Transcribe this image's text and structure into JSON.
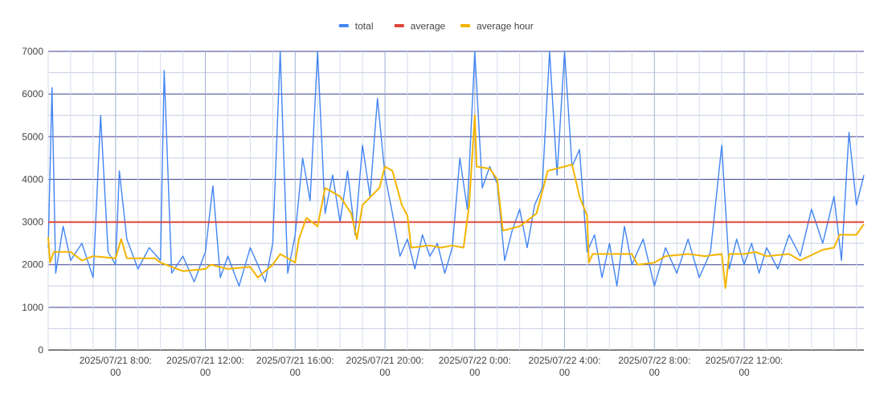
{
  "chart_data": {
    "type": "line",
    "title": "",
    "xlabel": "",
    "ylabel": "",
    "legend_position": "top-center",
    "grid": true,
    "ylim": [
      0,
      7000
    ],
    "y_ticks": [
      "0",
      "1000",
      "2000",
      "3000",
      "4000",
      "5000",
      "6000",
      "7000"
    ],
    "x_range": [
      "2025/07/21 05:00",
      "2025/07/22 17:20"
    ],
    "x_ticks": [
      {
        "t": "2025/07/21 08:00",
        "line1": "2025/07/21 8:00:",
        "line2": "00"
      },
      {
        "t": "2025/07/21 12:00",
        "line1": "2025/07/21 12:00:",
        "line2": "00"
      },
      {
        "t": "2025/07/21 16:00",
        "line1": "2025/07/21 16:00:",
        "line2": "00"
      },
      {
        "t": "2025/07/21 20:00",
        "line1": "2025/07/21 20:00:",
        "line2": "00"
      },
      {
        "t": "2025/07/22 00:00",
        "line1": "2025/07/22 0:00:",
        "line2": "00"
      },
      {
        "t": "2025/07/22 04:00",
        "line1": "2025/07/22 4:00:",
        "line2": "00"
      },
      {
        "t": "2025/07/22 08:00",
        "line1": "2025/07/22 8:00:",
        "line2": "00"
      },
      {
        "t": "2025/07/22 12:00",
        "line1": "2025/07/22 12:00:",
        "line2": "00"
      }
    ],
    "series": [
      {
        "name": "total",
        "color": "#4285f4",
        "points": [
          [
            "2025/07/21 05:00",
            2400
          ],
          [
            "2025/07/21 05:10",
            6150
          ],
          [
            "2025/07/21 05:20",
            1800
          ],
          [
            "2025/07/21 05:40",
            2900
          ],
          [
            "2025/07/21 06:00",
            2100
          ],
          [
            "2025/07/21 06:30",
            2500
          ],
          [
            "2025/07/21 07:00",
            1700
          ],
          [
            "2025/07/21 07:20",
            5500
          ],
          [
            "2025/07/21 07:40",
            2300
          ],
          [
            "2025/07/21 08:00",
            2000
          ],
          [
            "2025/07/21 08:10",
            4200
          ],
          [
            "2025/07/21 08:30",
            2600
          ],
          [
            "2025/07/21 09:00",
            1900
          ],
          [
            "2025/07/21 09:30",
            2400
          ],
          [
            "2025/07/21 10:00",
            2100
          ],
          [
            "2025/07/21 10:10",
            6550
          ],
          [
            "2025/07/21 10:30",
            1800
          ],
          [
            "2025/07/21 11:00",
            2200
          ],
          [
            "2025/07/21 11:30",
            1600
          ],
          [
            "2025/07/21 12:00",
            2300
          ],
          [
            "2025/07/21 12:20",
            3850
          ],
          [
            "2025/07/21 12:40",
            1700
          ],
          [
            "2025/07/21 13:00",
            2200
          ],
          [
            "2025/07/21 13:30",
            1500
          ],
          [
            "2025/07/21 14:00",
            2400
          ],
          [
            "2025/07/21 14:20",
            2000
          ],
          [
            "2025/07/21 14:40",
            1600
          ],
          [
            "2025/07/21 15:00",
            2500
          ],
          [
            "2025/07/21 15:20",
            7000
          ],
          [
            "2025/07/21 15:40",
            1800
          ],
          [
            "2025/07/21 16:00",
            2700
          ],
          [
            "2025/07/21 16:20",
            4500
          ],
          [
            "2025/07/21 16:40",
            3500
          ],
          [
            "2025/07/21 17:00",
            7000
          ],
          [
            "2025/07/21 17:20",
            3200
          ],
          [
            "2025/07/21 17:40",
            4100
          ],
          [
            "2025/07/21 18:00",
            3000
          ],
          [
            "2025/07/21 18:20",
            4200
          ],
          [
            "2025/07/21 18:40",
            2700
          ],
          [
            "2025/07/21 19:00",
            4800
          ],
          [
            "2025/07/21 19:20",
            3600
          ],
          [
            "2025/07/21 19:40",
            5900
          ],
          [
            "2025/07/21 20:00",
            4100
          ],
          [
            "2025/07/21 20:20",
            3200
          ],
          [
            "2025/07/21 20:40",
            2200
          ],
          [
            "2025/07/21 21:00",
            2600
          ],
          [
            "2025/07/21 21:20",
            1900
          ],
          [
            "2025/07/21 21:40",
            2700
          ],
          [
            "2025/07/21 22:00",
            2200
          ],
          [
            "2025/07/21 22:20",
            2500
          ],
          [
            "2025/07/21 22:40",
            1800
          ],
          [
            "2025/07/21 23:00",
            2400
          ],
          [
            "2025/07/21 23:20",
            4500
          ],
          [
            "2025/07/21 23:40",
            3300
          ],
          [
            "2025/07/22 00:00",
            7000
          ],
          [
            "2025/07/22 00:20",
            3800
          ],
          [
            "2025/07/22 00:40",
            4300
          ],
          [
            "2025/07/22 01:00",
            3900
          ],
          [
            "2025/07/22 01:20",
            2100
          ],
          [
            "2025/07/22 01:40",
            2800
          ],
          [
            "2025/07/22 02:00",
            3300
          ],
          [
            "2025/07/22 02:20",
            2400
          ],
          [
            "2025/07/22 02:40",
            3400
          ],
          [
            "2025/07/22 03:00",
            3800
          ],
          [
            "2025/07/22 03:20",
            7000
          ],
          [
            "2025/07/22 03:40",
            4100
          ],
          [
            "2025/07/22 04:00",
            7000
          ],
          [
            "2025/07/22 04:20",
            4300
          ],
          [
            "2025/07/22 04:40",
            4700
          ],
          [
            "2025/07/22 05:00",
            2300
          ],
          [
            "2025/07/22 05:20",
            2700
          ],
          [
            "2025/07/22 05:40",
            1700
          ],
          [
            "2025/07/22 06:00",
            2500
          ],
          [
            "2025/07/22 06:20",
            1500
          ],
          [
            "2025/07/22 06:40",
            2900
          ],
          [
            "2025/07/22 07:00",
            2000
          ],
          [
            "2025/07/22 07:30",
            2600
          ],
          [
            "2025/07/22 08:00",
            1500
          ],
          [
            "2025/07/22 08:30",
            2400
          ],
          [
            "2025/07/22 09:00",
            1800
          ],
          [
            "2025/07/22 09:30",
            2600
          ],
          [
            "2025/07/22 10:00",
            1700
          ],
          [
            "2025/07/22 10:30",
            2300
          ],
          [
            "2025/07/22 11:00",
            4800
          ],
          [
            "2025/07/22 11:20",
            1900
          ],
          [
            "2025/07/22 11:40",
            2600
          ],
          [
            "2025/07/22 12:00",
            2000
          ],
          [
            "2025/07/22 12:20",
            2500
          ],
          [
            "2025/07/22 12:40",
            1800
          ],
          [
            "2025/07/22 13:00",
            2400
          ],
          [
            "2025/07/22 13:30",
            1900
          ],
          [
            "2025/07/22 14:00",
            2700
          ],
          [
            "2025/07/22 14:30",
            2200
          ],
          [
            "2025/07/22 15:00",
            3300
          ],
          [
            "2025/07/22 15:30",
            2500
          ],
          [
            "2025/07/22 16:00",
            3600
          ],
          [
            "2025/07/22 16:20",
            2100
          ],
          [
            "2025/07/22 16:40",
            5100
          ],
          [
            "2025/07/22 17:00",
            3400
          ],
          [
            "2025/07/22 17:20",
            4100
          ]
        ]
      },
      {
        "name": "average",
        "color": "#db4437",
        "points": [
          [
            "2025/07/21 05:00",
            3000
          ],
          [
            "2025/07/22 17:20",
            3000
          ]
        ]
      },
      {
        "name": "average hour",
        "color": "#f4b400",
        "points": [
          [
            "2025/07/21 05:00",
            2650
          ],
          [
            "2025/07/21 05:05",
            2050
          ],
          [
            "2025/07/21 05:15",
            2300
          ],
          [
            "2025/07/21 06:00",
            2300
          ],
          [
            "2025/07/21 06:30",
            2100
          ],
          [
            "2025/07/21 07:00",
            2200
          ],
          [
            "2025/07/21 08:00",
            2150
          ],
          [
            "2025/07/21 08:15",
            2600
          ],
          [
            "2025/07/21 08:30",
            2150
          ],
          [
            "2025/07/21 09:45",
            2150
          ],
          [
            "2025/07/21 10:00",
            2050
          ],
          [
            "2025/07/21 10:30",
            1950
          ],
          [
            "2025/07/21 11:00",
            1850
          ],
          [
            "2025/07/21 12:00",
            1900
          ],
          [
            "2025/07/21 12:15",
            2000
          ],
          [
            "2025/07/21 13:00",
            1900
          ],
          [
            "2025/07/21 14:00",
            1950
          ],
          [
            "2025/07/21 14:20",
            1700
          ],
          [
            "2025/07/21 15:00",
            2000
          ],
          [
            "2025/07/21 15:20",
            2250
          ],
          [
            "2025/07/21 16:00",
            2050
          ],
          [
            "2025/07/21 16:10",
            2600
          ],
          [
            "2025/07/21 16:30",
            3100
          ],
          [
            "2025/07/21 17:00",
            2900
          ],
          [
            "2025/07/21 17:20",
            3800
          ],
          [
            "2025/07/21 18:00",
            3600
          ],
          [
            "2025/07/21 18:30",
            3200
          ],
          [
            "2025/07/21 18:45",
            2600
          ],
          [
            "2025/07/21 19:00",
            3400
          ],
          [
            "2025/07/21 19:45",
            3800
          ],
          [
            "2025/07/21 20:00",
            4300
          ],
          [
            "2025/07/21 20:20",
            4200
          ],
          [
            "2025/07/21 20:45",
            3400
          ],
          [
            "2025/07/21 21:00",
            3150
          ],
          [
            "2025/07/21 21:10",
            2400
          ],
          [
            "2025/07/21 22:00",
            2450
          ],
          [
            "2025/07/21 22:30",
            2400
          ],
          [
            "2025/07/21 23:00",
            2450
          ],
          [
            "2025/07/21 23:30",
            2400
          ],
          [
            "2025/07/21 23:45",
            3400
          ],
          [
            "2025/07/22 00:00",
            5500
          ],
          [
            "2025/07/22 00:05",
            4300
          ],
          [
            "2025/07/22 00:40",
            4250
          ],
          [
            "2025/07/22 01:00",
            4000
          ],
          [
            "2025/07/22 01:15",
            2800
          ],
          [
            "2025/07/22 02:00",
            2900
          ],
          [
            "2025/07/22 02:45",
            3200
          ],
          [
            "2025/07/22 03:00",
            3700
          ],
          [
            "2025/07/22 03:15",
            4200
          ],
          [
            "2025/07/22 04:00",
            4300
          ],
          [
            "2025/07/22 04:20",
            4350
          ],
          [
            "2025/07/22 04:40",
            3600
          ],
          [
            "2025/07/22 05:00",
            3150
          ],
          [
            "2025/07/22 05:05",
            2050
          ],
          [
            "2025/07/22 05:15",
            2250
          ],
          [
            "2025/07/22 06:00",
            2250
          ],
          [
            "2025/07/22 07:00",
            2250
          ],
          [
            "2025/07/22 07:15",
            2000
          ],
          [
            "2025/07/22 08:00",
            2050
          ],
          [
            "2025/07/22 08:30",
            2200
          ],
          [
            "2025/07/22 09:30",
            2250
          ],
          [
            "2025/07/22 10:15",
            2200
          ],
          [
            "2025/07/22 11:00",
            2250
          ],
          [
            "2025/07/22 11:10",
            1450
          ],
          [
            "2025/07/22 11:20",
            2250
          ],
          [
            "2025/07/22 12:00",
            2250
          ],
          [
            "2025/07/22 12:30",
            2300
          ],
          [
            "2025/07/22 13:00",
            2200
          ],
          [
            "2025/07/22 14:00",
            2250
          ],
          [
            "2025/07/22 14:30",
            2100
          ],
          [
            "2025/07/22 15:30",
            2350
          ],
          [
            "2025/07/22 16:00",
            2400
          ],
          [
            "2025/07/22 16:15",
            2700
          ],
          [
            "2025/07/22 17:00",
            2700
          ],
          [
            "2025/07/22 17:20",
            2950
          ]
        ]
      }
    ]
  }
}
